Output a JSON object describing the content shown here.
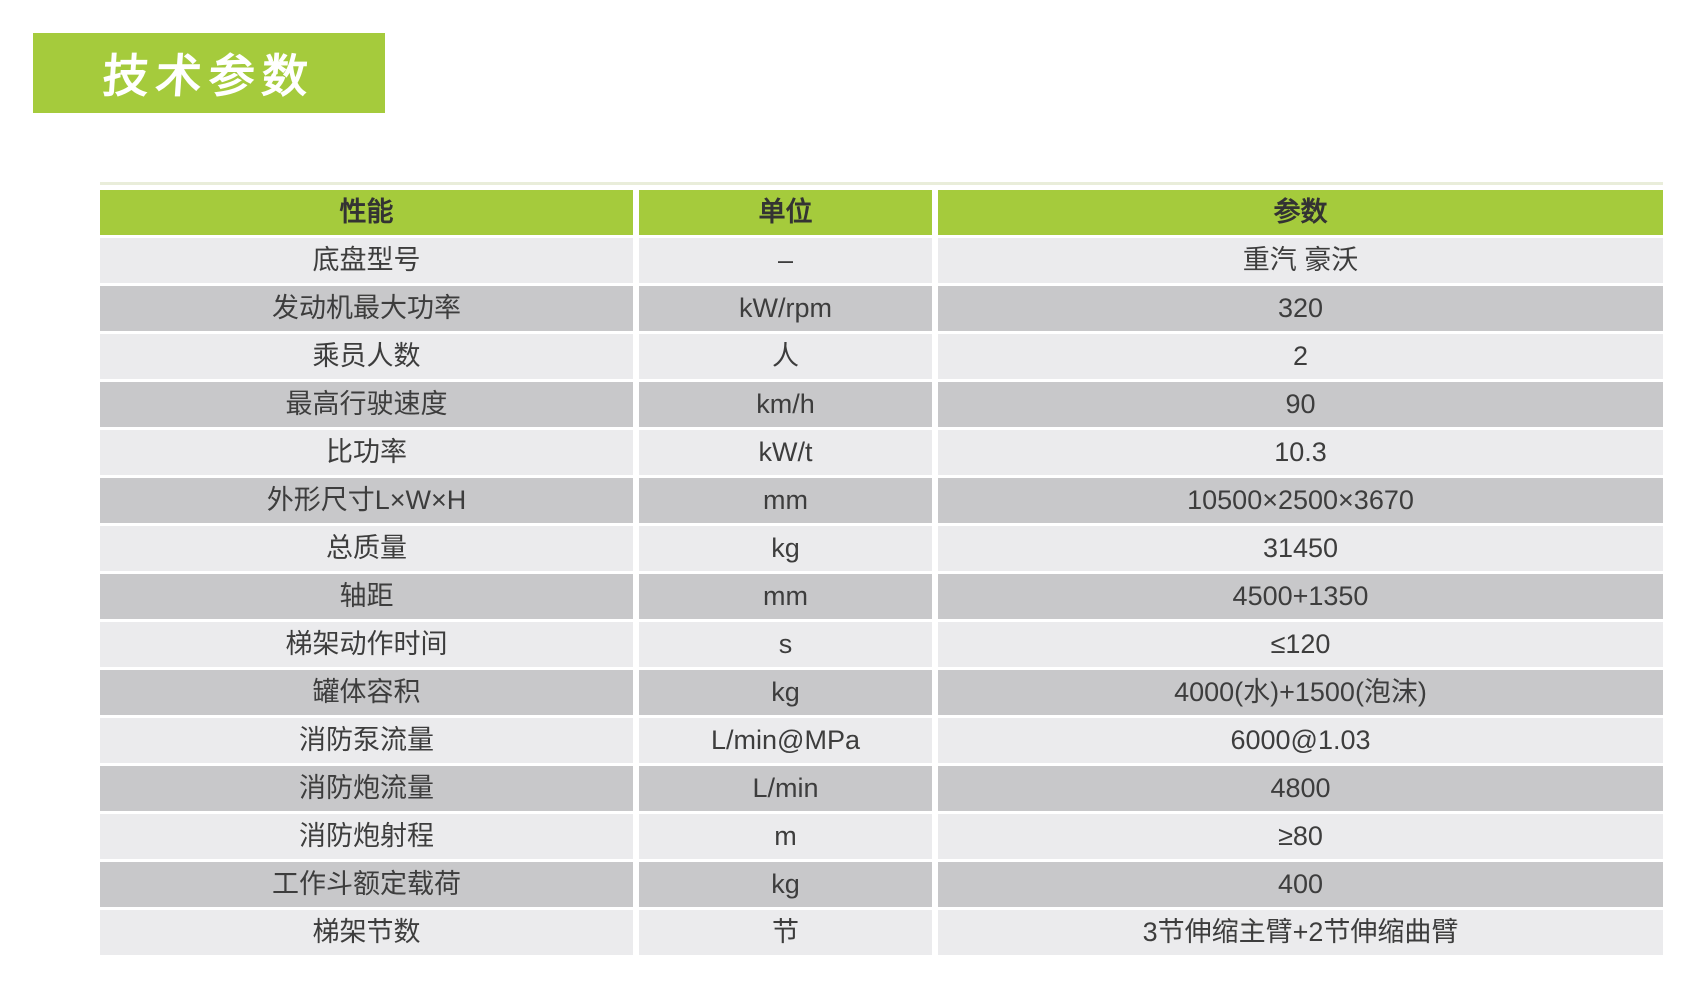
{
  "title": "技术参数",
  "table": {
    "headers": [
      "性能",
      "单位",
      "参数"
    ],
    "rows": [
      {
        "name": "底盘型号",
        "unit": "–",
        "value": "重汽 豪沃"
      },
      {
        "name": "发动机最大功率",
        "unit": "kW/rpm",
        "value": "320"
      },
      {
        "name": "乘员人数",
        "unit": "人",
        "value": "2"
      },
      {
        "name": "最高行驶速度",
        "unit": "km/h",
        "value": "90"
      },
      {
        "name": "比功率",
        "unit": "kW/t",
        "value": "10.3"
      },
      {
        "name": "外形尺寸L×W×H",
        "unit": "mm",
        "value": "10500×2500×3670"
      },
      {
        "name": "总质量",
        "unit": "kg",
        "value": "31450"
      },
      {
        "name": "轴距",
        "unit": "mm",
        "value": "4500+1350"
      },
      {
        "name": "梯架动作时间",
        "unit": "s",
        "value": "≤120"
      },
      {
        "name": "罐体容积",
        "unit": "kg",
        "value": "4000(水)+1500(泡沫)"
      },
      {
        "name": "消防泵流量",
        "unit": "L/min@MPa",
        "value": "6000@1.03"
      },
      {
        "name": "消防炮流量",
        "unit": "L/min",
        "value": "4800"
      },
      {
        "name": "消防炮射程",
        "unit": "m",
        "value": "≥80"
      },
      {
        "name": "工作斗额定载荷",
        "unit": "kg",
        "value": "400"
      },
      {
        "name": "梯架节数",
        "unit": "节",
        "value": "3节伸缩主臂+2节伸缩曲臂"
      }
    ]
  },
  "colors": {
    "accent_green": "#a5cb3c",
    "row_light": "#ebebed",
    "row_dark": "#c8c8ca",
    "header_text": "#333333",
    "cell_text": "#3d3d3d"
  }
}
